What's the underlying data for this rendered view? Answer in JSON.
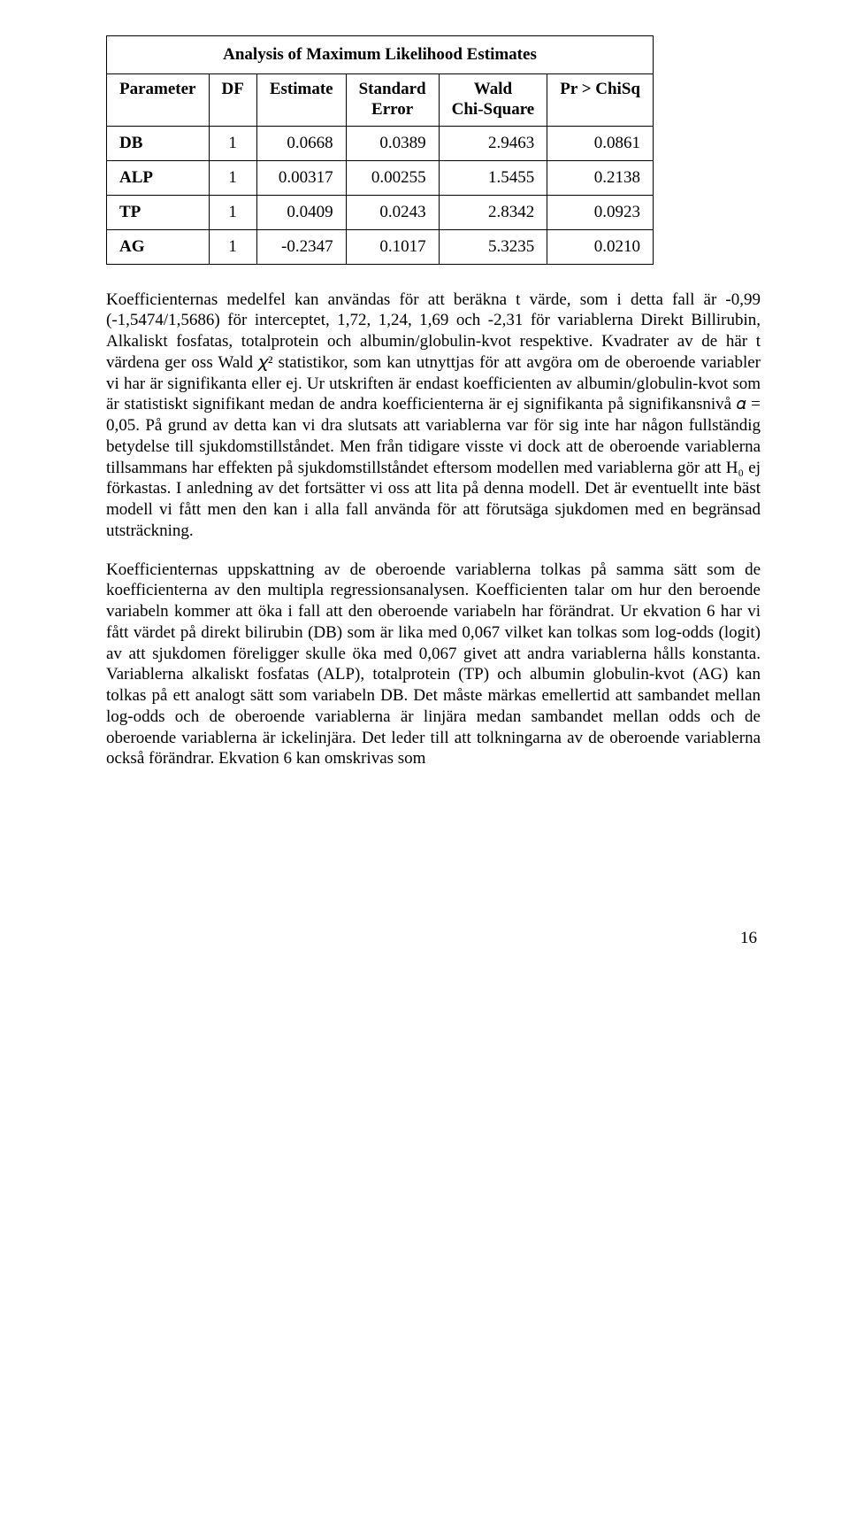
{
  "table": {
    "caption": "Analysis of Maximum Likelihood Estimates",
    "columns": {
      "parameter": "Parameter",
      "df": "DF",
      "estimate": "Estimate",
      "stderr_l1": "Standard",
      "stderr_l2": "Error",
      "wald_l1": "Wald",
      "wald_l2": "Chi-Square",
      "pr": "Pr > ChiSq"
    },
    "rows": [
      {
        "param": "DB",
        "df": "1",
        "est": "0.0668",
        "se": "0.0389",
        "wald": "2.9463",
        "pr": "0.0861"
      },
      {
        "param": "ALP",
        "df": "1",
        "est": "0.00317",
        "se": "0.00255",
        "wald": "1.5455",
        "pr": "0.2138"
      },
      {
        "param": "TP",
        "df": "1",
        "est": "0.0409",
        "se": "0.0243",
        "wald": "2.8342",
        "pr": "0.0923"
      },
      {
        "param": "AG",
        "df": "1",
        "est": "-0.2347",
        "se": "0.1017",
        "wald": "5.3235",
        "pr": "0.0210"
      }
    ]
  },
  "para1": "Koefficienternas medelfel kan användas för att beräkna t värde, som i detta fall är -0,99 (-1,5474/1,5686) för interceptet, 1,72, 1,24, 1,69 och -2,31 för variablerna Direkt Billirubin, Alkaliskt fosfatas, totalprotein och albumin/globulin-kvot respektive. Kvadrater av de här t värdena ger oss Wald 𝜒² statistikor, som kan utnyttjas för att avgöra om de oberoende variabler vi har är signifikanta eller ej. Ur utskriften är endast koefficienten av albumin/globulin-kvot som är statistiskt signifikant medan de andra koefficienterna är ej signifikanta på signifikansnivå 𝛼 = 0,05. På grund av detta kan vi dra slutsats att variablerna var för sig inte har någon fullständig betydelse till sjukdomstillståndet. Men från tidigare visste vi dock att de oberoende variablerna tillsammans har effekten på sjukdomstillståndet eftersom modellen med variablerna gör att H₀ ej förkastas. I anledning av det fortsätter vi oss att lita på denna modell. Det är eventuellt inte bäst modell vi fått men den kan i alla fall använda för att förutsäga sjukdomen med en begränsad utsträckning.",
  "para2": "Koefficienternas uppskattning av de oberoende variablerna tolkas på samma sätt som de koefficienterna av den multipla regressionsanalysen. Koefficienten talar om hur den beroende variabeln kommer att öka i fall att den oberoende variabeln har förändrat. Ur ekvation 6 har vi fått värdet på direkt bilirubin (DB) som är lika med 0,067 vilket kan tolkas som log-odds (logit) av att sjukdomen föreligger skulle öka med 0,067 givet att andra variablerna hålls konstanta. Variablerna alkaliskt fosfatas (ALP), totalprotein (TP) och albumin globulin-kvot (AG) kan tolkas på ett analogt sätt som variabeln DB. Det måste märkas emellertid att sambandet mellan log-odds och de oberoende variablerna är linjära medan sambandet mellan odds och de oberoende variablerna är ickelinjära. Det leder till att tolkningarna av de oberoende variablerna också förändrar. Ekvation 6 kan omskrivas som",
  "pageNumber": "16"
}
